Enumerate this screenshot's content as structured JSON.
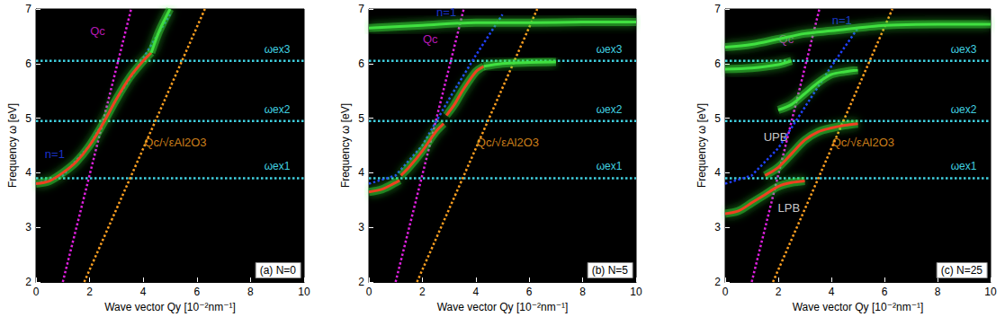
{
  "chart_data": [
    {
      "type": "line",
      "title": "(a) N=0",
      "xlabel": "Wave vector Qy [10⁻²nm⁻¹]",
      "ylabel": "Frequency ω [eV]",
      "xlim": [
        0,
        10
      ],
      "ylim": [
        2,
        7
      ],
      "xticks": [
        0,
        2,
        4,
        6,
        8,
        10
      ],
      "yticks": [
        2,
        3,
        4,
        5,
        6,
        7
      ],
      "hlines": [
        {
          "y": 3.9,
          "label": "ωex1",
          "color": "#40d0e0"
        },
        {
          "y": 4.95,
          "label": "ωex2",
          "color": "#40d0e0"
        },
        {
          "y": 6.05,
          "label": "ωex3",
          "color": "#40d0e0"
        }
      ],
      "series": [
        {
          "color": "#e020e0",
          "line_style": "dotted",
          "x": [
            1.0,
            3.55
          ],
          "values": [
            2.0,
            7.0
          ]
        },
        {
          "color": "#ffa020",
          "line_style": "dotted",
          "x": [
            1.8,
            6.3
          ],
          "values": [
            2.0,
            7.0
          ]
        },
        {
          "color": "#2040ff",
          "line_style": "dotted",
          "x": [
            0,
            1,
            2,
            3,
            4,
            5
          ],
          "values": [
            3.8,
            3.95,
            4.5,
            5.35,
            6.1,
            6.9
          ]
        },
        {
          "color": "#f04020",
          "line_style": "solid",
          "x": [
            0,
            0.5,
            1,
            1.5,
            2,
            2.5,
            3,
            3.5,
            4,
            4.3
          ],
          "values": [
            3.8,
            3.85,
            4.0,
            4.2,
            4.5,
            4.9,
            5.35,
            5.75,
            6.05,
            6.2
          ]
        },
        {
          "color": "#40e040",
          "line_style": "solid",
          "x": [
            4.3,
            4.6,
            5.0
          ],
          "values": [
            6.2,
            6.6,
            7.0
          ]
        }
      ],
      "annotations": [
        {
          "text": "Qc",
          "x": 2.3,
          "y": 6.6,
          "color": "#e020e0"
        },
        {
          "text": "n=1",
          "x": 0.7,
          "y": 4.35,
          "color": "#2040ff"
        },
        {
          "text": "Qc/√εAl2O3",
          "x": 5.2,
          "y": 4.55,
          "color": "#ffa020"
        }
      ]
    },
    {
      "type": "line",
      "title": "(b) N=5",
      "xlabel": "Wave vector Qy [10⁻²nm⁻¹]",
      "ylabel": "Frequency ω [eV]",
      "xlim": [
        0,
        10
      ],
      "ylim": [
        2,
        7
      ],
      "xticks": [
        0,
        2,
        4,
        6,
        8,
        10
      ],
      "yticks": [
        2,
        3,
        4,
        5,
        6,
        7
      ],
      "hlines": [
        {
          "y": 3.9,
          "label": "ωex1",
          "color": "#40d0e0"
        },
        {
          "y": 4.95,
          "label": "ωex2",
          "color": "#40d0e0"
        },
        {
          "y": 6.05,
          "label": "ωex3",
          "color": "#40d0e0"
        }
      ],
      "series": [
        {
          "color": "#e020e0",
          "line_style": "dotted",
          "x": [
            1.0,
            3.55
          ],
          "values": [
            2.0,
            7.0
          ]
        },
        {
          "color": "#ffa020",
          "line_style": "dotted",
          "x": [
            1.8,
            6.3
          ],
          "values": [
            2.0,
            7.0
          ]
        },
        {
          "color": "#2040ff",
          "line_style": "dotted",
          "x": [
            0,
            1,
            2,
            3,
            4,
            5
          ],
          "values": [
            3.8,
            3.95,
            4.5,
            5.35,
            6.15,
            6.9
          ]
        },
        {
          "color": "#f04020",
          "line_style": "solid",
          "x": [
            0,
            0.5,
            1,
            1.15
          ],
          "values": [
            3.65,
            3.7,
            3.82,
            3.86
          ]
        },
        {
          "color": "#f04020",
          "line_style": "solid",
          "x": [
            1.2,
            1.5,
            2,
            2.5,
            2.8
          ],
          "values": [
            3.95,
            4.1,
            4.4,
            4.75,
            4.9
          ]
        },
        {
          "color": "#f04020",
          "line_style": "solid",
          "x": [
            2.9,
            3.2,
            3.5,
            4,
            4.3
          ],
          "values": [
            5.05,
            5.25,
            5.5,
            5.85,
            5.95
          ]
        },
        {
          "color": "#40e040",
          "line_style": "solid",
          "x": [
            4.3,
            5,
            6,
            7
          ],
          "values": [
            5.95,
            6.0,
            6.02,
            6.03
          ]
        },
        {
          "color": "#40e040",
          "line_style": "solid",
          "x": [
            0,
            2,
            4,
            6,
            8,
            10
          ],
          "values": [
            6.65,
            6.7,
            6.75,
            6.75,
            6.76,
            6.76
          ]
        }
      ],
      "annotations": [
        {
          "text": "Qc",
          "x": 2.3,
          "y": 6.45,
          "color": "#e020e0"
        },
        {
          "text": "n=1",
          "x": 2.9,
          "y": 6.95,
          "color": "#2040ff"
        },
        {
          "text": "Qc/√εAl2O3",
          "x": 5.2,
          "y": 4.55,
          "color": "#ffa020"
        }
      ]
    },
    {
      "type": "line",
      "title": "(c) N=25",
      "xlabel": "Wave vector Qy [10⁻²nm⁻¹]",
      "ylabel": "Frequency ω [eV]",
      "xlim": [
        0,
        10
      ],
      "ylim": [
        2,
        7
      ],
      "xticks": [
        0,
        2,
        4,
        6,
        8,
        10
      ],
      "yticks": [
        2,
        3,
        4,
        5,
        6,
        7
      ],
      "hlines": [
        {
          "y": 3.9,
          "label": "ωex1",
          "color": "#40d0e0"
        },
        {
          "y": 4.95,
          "label": "ωex2",
          "color": "#40d0e0"
        },
        {
          "y": 6.05,
          "label": "ωex3",
          "color": "#40d0e0"
        }
      ],
      "series": [
        {
          "color": "#e020e0",
          "line_style": "dotted",
          "x": [
            1.0,
            3.55
          ],
          "values": [
            2.0,
            7.0
          ]
        },
        {
          "color": "#ffa020",
          "line_style": "dotted",
          "x": [
            1.8,
            6.3
          ],
          "values": [
            2.0,
            7.0
          ]
        },
        {
          "color": "#2040ff",
          "line_style": "dotted",
          "x": [
            0,
            1,
            2,
            3,
            4,
            5
          ],
          "values": [
            3.8,
            3.95,
            4.45,
            5.2,
            5.95,
            6.65
          ]
        },
        {
          "color": "#f04020",
          "line_style": "solid",
          "x": [
            0,
            0.5,
            1,
            1.5,
            2,
            2.5,
            3
          ],
          "values": [
            3.25,
            3.3,
            3.45,
            3.6,
            3.75,
            3.82,
            3.85
          ]
        },
        {
          "color": "#f04020",
          "line_style": "solid",
          "x": [
            1.5,
            2,
            2.5,
            3,
            3.5,
            4,
            4.5,
            5
          ],
          "values": [
            3.95,
            4.1,
            4.35,
            4.6,
            4.75,
            4.82,
            4.87,
            4.9
          ]
        },
        {
          "color": "#40e040",
          "line_style": "solid",
          "x": [
            2,
            2.5,
            3,
            3.5,
            4,
            4.5,
            5
          ],
          "values": [
            5.15,
            5.25,
            5.45,
            5.65,
            5.8,
            5.85,
            5.88
          ]
        },
        {
          "color": "#40e040",
          "line_style": "solid",
          "x": [
            0,
            1,
            2,
            2.5
          ],
          "values": [
            5.9,
            5.92,
            5.98,
            6.05
          ]
        },
        {
          "color": "#40e040",
          "line_style": "solid",
          "x": [
            0,
            1,
            2,
            3,
            4,
            6,
            8,
            10
          ],
          "values": [
            6.3,
            6.35,
            6.45,
            6.55,
            6.6,
            6.7,
            6.72,
            6.72
          ]
        }
      ],
      "annotations": [
        {
          "text": "Qc",
          "x": 2.3,
          "y": 6.45,
          "color": "#e020e0"
        },
        {
          "text": "n=1",
          "x": 4.4,
          "y": 6.8,
          "color": "#2040ff"
        },
        {
          "text": "UPB",
          "x": 1.9,
          "y": 4.65,
          "color": "#ffffff"
        },
        {
          "text": "LPB",
          "x": 2.4,
          "y": 3.35,
          "color": "#ffffff"
        },
        {
          "text": "Qc/√εAl2O3",
          "x": 5.2,
          "y": 4.55,
          "color": "#ffa020"
        }
      ]
    }
  ]
}
